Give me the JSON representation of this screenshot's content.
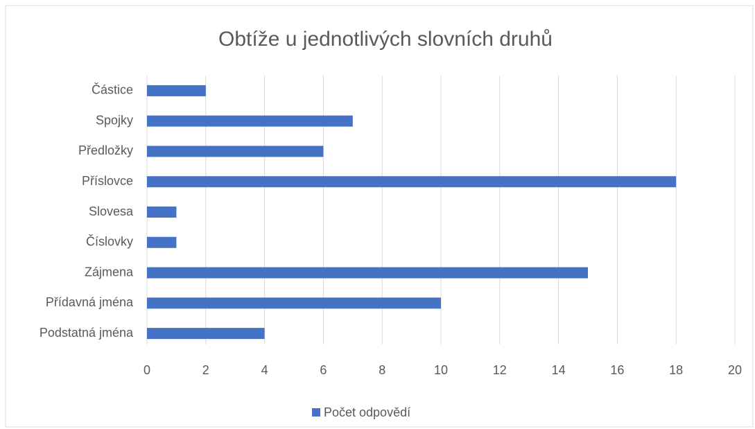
{
  "chart_data": {
    "type": "bar",
    "orientation": "horizontal",
    "title": "Obtíže u jednotlivých slovních druhů",
    "categories": [
      "Podstatná jména",
      "Přídavná jména",
      "Zájmena",
      "Číslovky",
      "Slovesa",
      "Příslovce",
      "Předložky",
      "Spojky",
      "Částice"
    ],
    "series": [
      {
        "name": "Počet odpovědí",
        "color": "#4472c4",
        "values": [
          4,
          10,
          15,
          1,
          1,
          18,
          6,
          7,
          2
        ]
      }
    ],
    "xlim": [
      0,
      20
    ],
    "xticks": [
      0,
      2,
      4,
      6,
      8,
      10,
      12,
      14,
      16,
      18,
      20
    ],
    "grid": true,
    "legend": "bottom"
  }
}
